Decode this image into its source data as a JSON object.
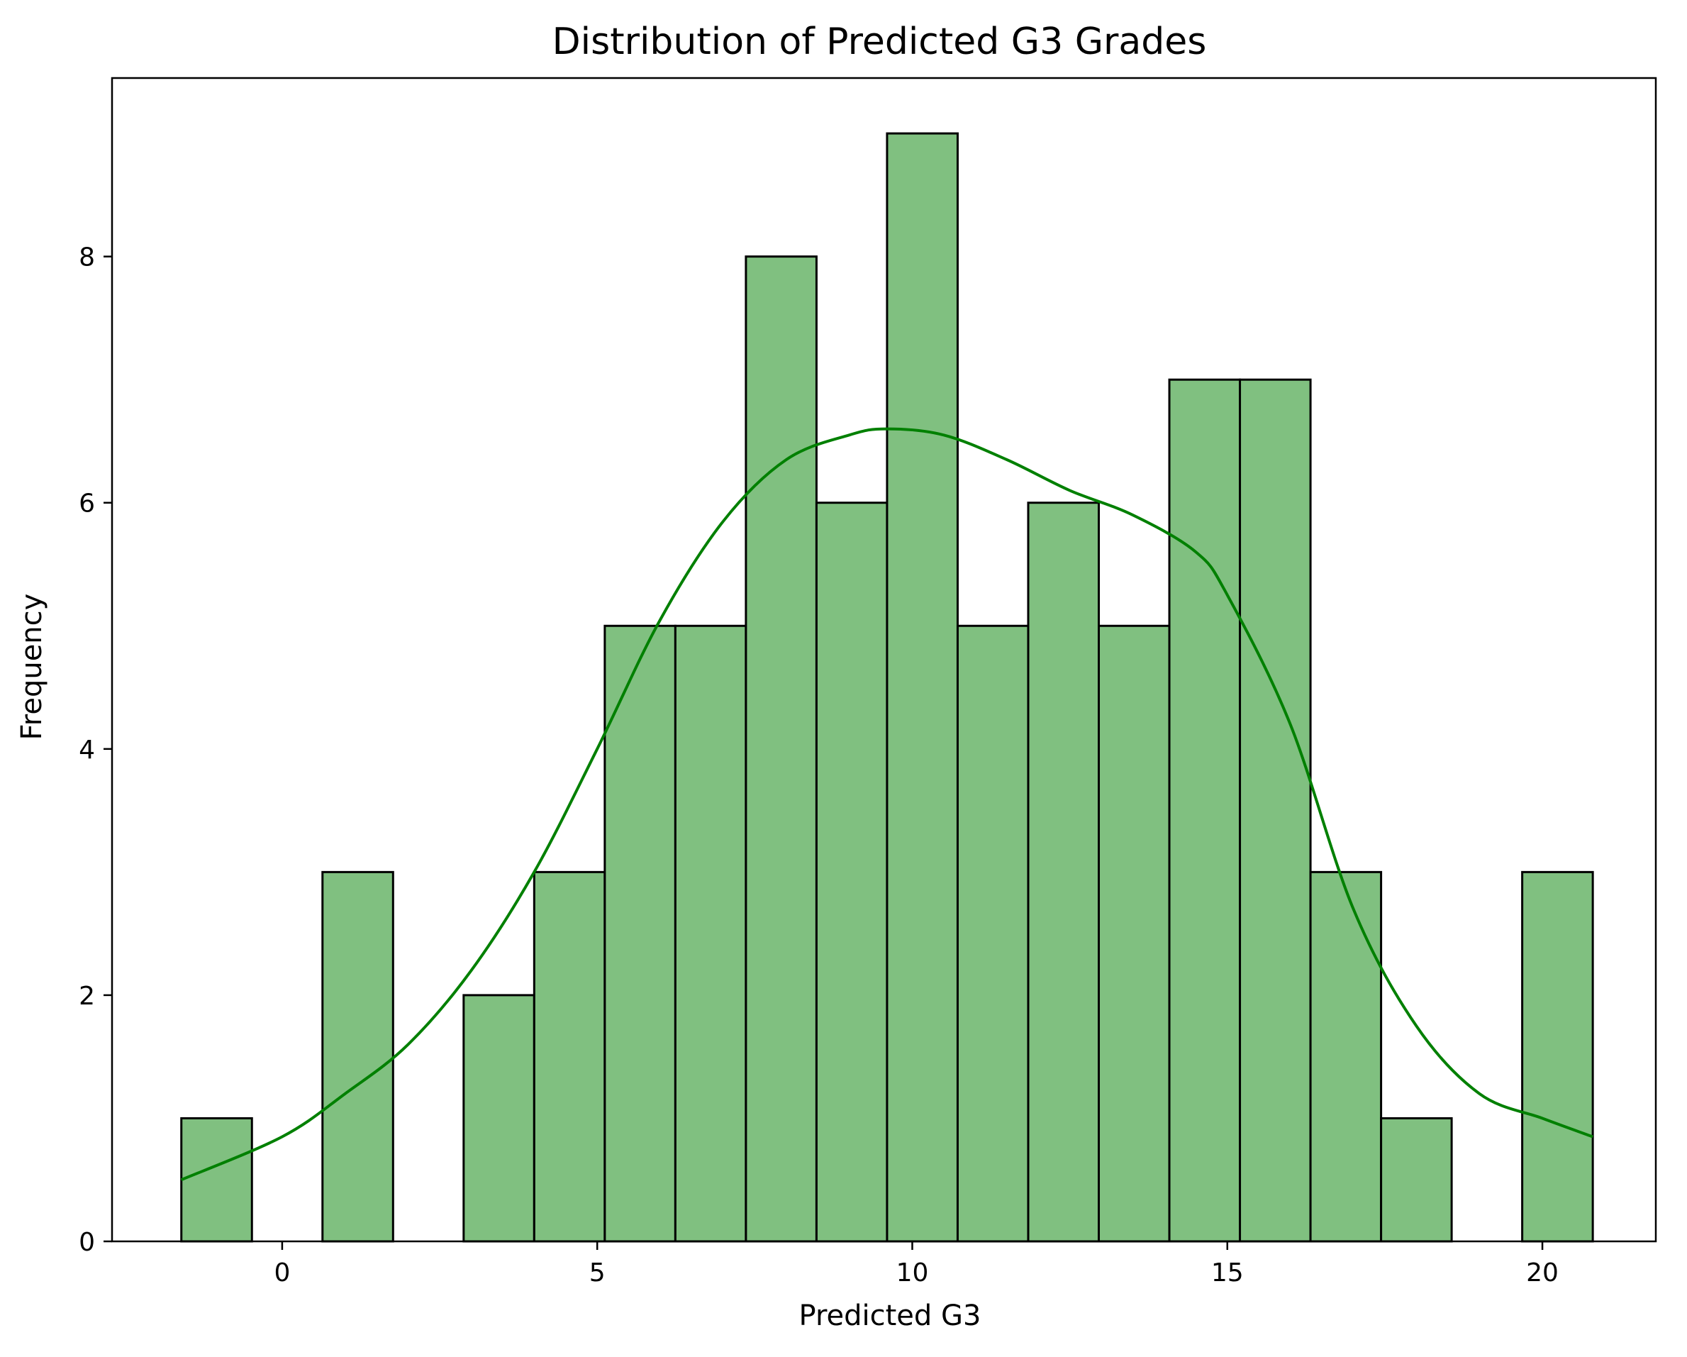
{
  "chart_data": {
    "type": "bar",
    "subtype": "histogram-with-kde",
    "title": "Distribution of Predicted G3 Grades",
    "xlabel": "Predicted G3",
    "ylabel": "Frequency",
    "xlim": [
      -2.7,
      21.8
    ],
    "ylim": [
      0,
      9.45
    ],
    "xticks": [
      0,
      5,
      10,
      15,
      20
    ],
    "yticks": [
      0,
      2,
      4,
      6,
      8
    ],
    "grid": false,
    "bin_edges": [
      -1.6,
      -0.48,
      0.64,
      1.76,
      2.88,
      4.0,
      5.12,
      6.24,
      7.36,
      8.48,
      9.6,
      10.72,
      11.84,
      12.96,
      14.08,
      15.2,
      16.32,
      17.44,
      18.56,
      19.68,
      20.8
    ],
    "counts": [
      1,
      0,
      3,
      0,
      2,
      3,
      5,
      5,
      8,
      6,
      9,
      5,
      6,
      5,
      7,
      7,
      3,
      1,
      0,
      3
    ],
    "kde": {
      "x": [
        -1.6,
        0.0,
        1.0,
        2.0,
        3.0,
        4.0,
        5.0,
        6.0,
        7.0,
        8.0,
        9.0,
        9.6,
        10.5,
        11.5,
        12.5,
        13.5,
        14.5,
        15.0,
        16.0,
        17.0,
        18.0,
        19.0,
        20.0,
        20.8
      ],
      "y": [
        0.5,
        0.85,
        1.2,
        1.6,
        2.2,
        3.0,
        4.0,
        5.05,
        5.85,
        6.35,
        6.55,
        6.6,
        6.55,
        6.35,
        6.1,
        5.9,
        5.6,
        5.25,
        4.2,
        2.7,
        1.75,
        1.2,
        1.0,
        0.85
      ]
    },
    "colors": {
      "bar_fill": "#80c080",
      "bar_edge": "#000000",
      "kde_line": "#008000",
      "axes": "#000000",
      "background": "#ffffff"
    }
  }
}
